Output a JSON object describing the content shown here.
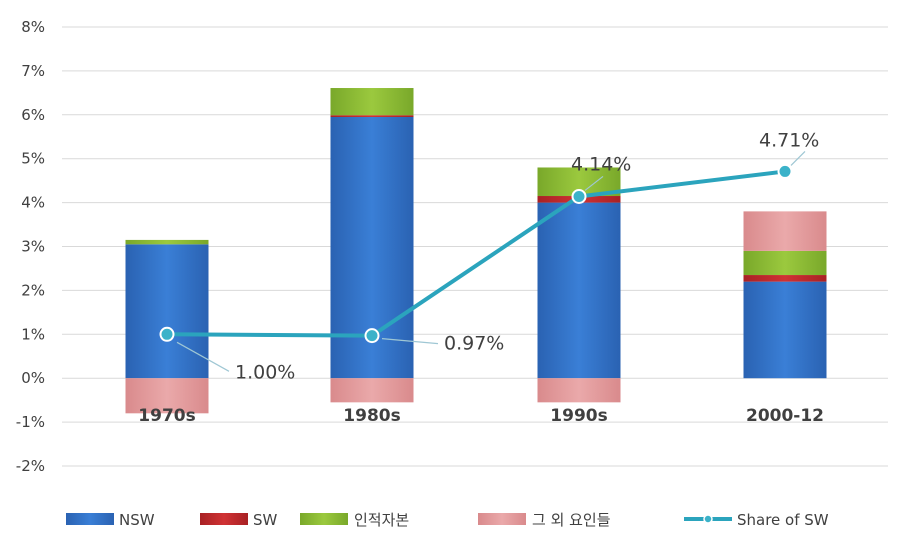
{
  "chart_data": {
    "type": "bar",
    "stacked": true,
    "categories": [
      "1970s",
      "1980s",
      "1990s",
      "2000-12"
    ],
    "series": [
      {
        "name": "NSW",
        "values": [
          3.05,
          5.95,
          4.0,
          2.2
        ],
        "color": "#2f6fc3"
      },
      {
        "name": "SW",
        "values": [
          0.0,
          0.04,
          0.15,
          0.15
        ],
        "color": "#c0292b"
      },
      {
        "name": "인적자본",
        "values": [
          0.1,
          0.62,
          0.65,
          0.55
        ],
        "color": "#8cba33"
      },
      {
        "name": "그 외 요인들",
        "values": [
          -0.8,
          -0.55,
          -0.55,
          0.9
        ],
        "color": "#e3999a"
      }
    ],
    "line_series": {
      "name": "Share of SW",
      "values": [
        1.0,
        0.97,
        4.14,
        4.71
      ],
      "labels": [
        "1.00%",
        "0.97%",
        "4.14%",
        "4.71%"
      ],
      "color": "#2ba4bd"
    },
    "y_ticks": [
      "8%",
      "7%",
      "6%",
      "5%",
      "4%",
      "3%",
      "2%",
      "1%",
      "0%",
      "-1%",
      "-2%"
    ],
    "ylim": [
      -2,
      8
    ],
    "grid": true,
    "legend_position": "bottom"
  }
}
